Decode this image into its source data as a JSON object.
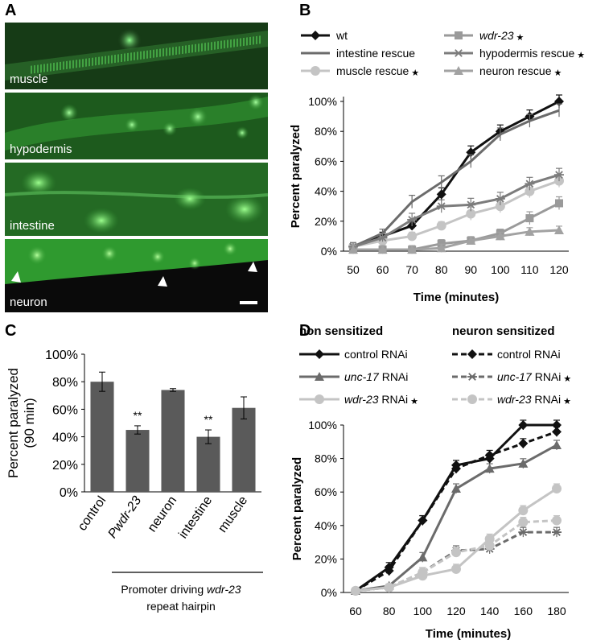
{
  "panels": {
    "a": "A",
    "b": "B",
    "c": "C",
    "d": "D"
  },
  "micrographs": [
    {
      "label": "muscle"
    },
    {
      "label": "hypodermis"
    },
    {
      "label": "intestine"
    },
    {
      "label": "neuron"
    }
  ],
  "chart_data": [
    {
      "panel": "B",
      "type": "line",
      "x": [
        50,
        60,
        70,
        80,
        90,
        100,
        110,
        120
      ],
      "xlabel": "Time (minutes)",
      "ylabel": "Percent paralyzed",
      "ylim": [
        0,
        100
      ],
      "ytick_labels": [
        "0%",
        "20%",
        "40%",
        "60%",
        "80%",
        "100%"
      ],
      "xtick_labels": [
        "50",
        "60",
        "70",
        "80",
        "90",
        "100",
        "110",
        "120"
      ],
      "legend_position": "top",
      "series": [
        {
          "name": "wt",
          "color": "#111111",
          "marker": "diamond",
          "dashed": false,
          "star": false,
          "values": [
            3,
            10,
            17,
            38,
            66,
            80,
            90,
            100
          ]
        },
        {
          "name": "intestine rescue",
          "color": "#6b6b6b",
          "marker": "none",
          "dashed": false,
          "star": false,
          "values": [
            3,
            12,
            33,
            46,
            60,
            78,
            87,
            94
          ]
        },
        {
          "name": "muscle rescue",
          "color": "#c4c4c4",
          "marker": "circle",
          "dashed": false,
          "star": true,
          "values": [
            3,
            7,
            10,
            17,
            25,
            30,
            40,
            47
          ]
        },
        {
          "name": "wdr-23",
          "color": "#9a9a9a",
          "marker": "square",
          "dashed": false,
          "star": true,
          "values": [
            1,
            1,
            1,
            5,
            7,
            12,
            22,
            32
          ]
        },
        {
          "name": "hypodermis rescue",
          "color": "#7c7c7c",
          "marker": "star",
          "dashed": false,
          "star": true,
          "values": [
            3,
            9,
            21,
            30,
            31,
            35,
            45,
            51
          ]
        },
        {
          "name": "neuron rescue",
          "color": "#a2a2a2",
          "marker": "triangle",
          "dashed": false,
          "star": true,
          "values": [
            1,
            1,
            1,
            2,
            7,
            10,
            13,
            14
          ]
        }
      ]
    },
    {
      "panel": "C",
      "type": "bar",
      "categories": [
        "control",
        "Pwdr-23",
        "neuron",
        "intestine",
        "muscle"
      ],
      "values": [
        80,
        45,
        74,
        40,
        61
      ],
      "errors": [
        7,
        3,
        1,
        5,
        8
      ],
      "significance": [
        "",
        "**",
        "",
        "**",
        ""
      ],
      "bar_color": "#5a5a5a",
      "ylabel_line1": "Percent paralyzed",
      "ylabel_line2": "(90 min)",
      "ylim": [
        0,
        100
      ],
      "ytick_labels": [
        "0%",
        "20%",
        "40%",
        "60%",
        "80%",
        "100%"
      ],
      "xlabel_line1_pre": "Promoter driving ",
      "xlabel_line1_em": "wdr-23",
      "xlabel_line2": "repeat hairpin"
    },
    {
      "panel": "D",
      "type": "line",
      "x": [
        60,
        80,
        100,
        120,
        140,
        160,
        180
      ],
      "xlabel": "Time (minutes)",
      "ylabel": "Percent paralyzed",
      "ylim": [
        0,
        100
      ],
      "ytick_labels": [
        "0%",
        "20%",
        "40%",
        "60%",
        "80%",
        "100%"
      ],
      "xtick_labels": [
        "60",
        "80",
        "100",
        "120",
        "140",
        "160",
        "180"
      ],
      "legend_headers": [
        "non sensitized",
        "neuron sensitized"
      ],
      "series": [
        {
          "name": "control RNAi",
          "color": "#111111",
          "marker": "diamond",
          "dashed": false,
          "star": false,
          "values": [
            1,
            15,
            43,
            76,
            80,
            100,
            100
          ]
        },
        {
          "name": "control RNAi",
          "color": "#111111",
          "marker": "diamond",
          "dashed": true,
          "star": false,
          "values": [
            1,
            13,
            43,
            74,
            82,
            89,
            96
          ]
        },
        {
          "name": "unc-17 RNAi",
          "color": "#6b6b6b",
          "marker": "triangle",
          "dashed": false,
          "star": false,
          "values": [
            1,
            4,
            21,
            62,
            74,
            77,
            88
          ]
        },
        {
          "name": "unc-17 RNAi",
          "color": "#6b6b6b",
          "marker": "star",
          "dashed": true,
          "star": true,
          "values": [
            1,
            3,
            12,
            25,
            26,
            36,
            36
          ]
        },
        {
          "name": "wdr-23 RNAi",
          "color": "#c4c4c4",
          "marker": "circle",
          "dashed": false,
          "star": true,
          "values": [
            1,
            3,
            10,
            14,
            32,
            49,
            62
          ]
        },
        {
          "name": "wdr-23 RNAi",
          "color": "#c4c4c4",
          "marker": "circle",
          "dashed": true,
          "star": true,
          "values": [
            1,
            3,
            12,
            24,
            28,
            42,
            43
          ]
        }
      ]
    }
  ]
}
